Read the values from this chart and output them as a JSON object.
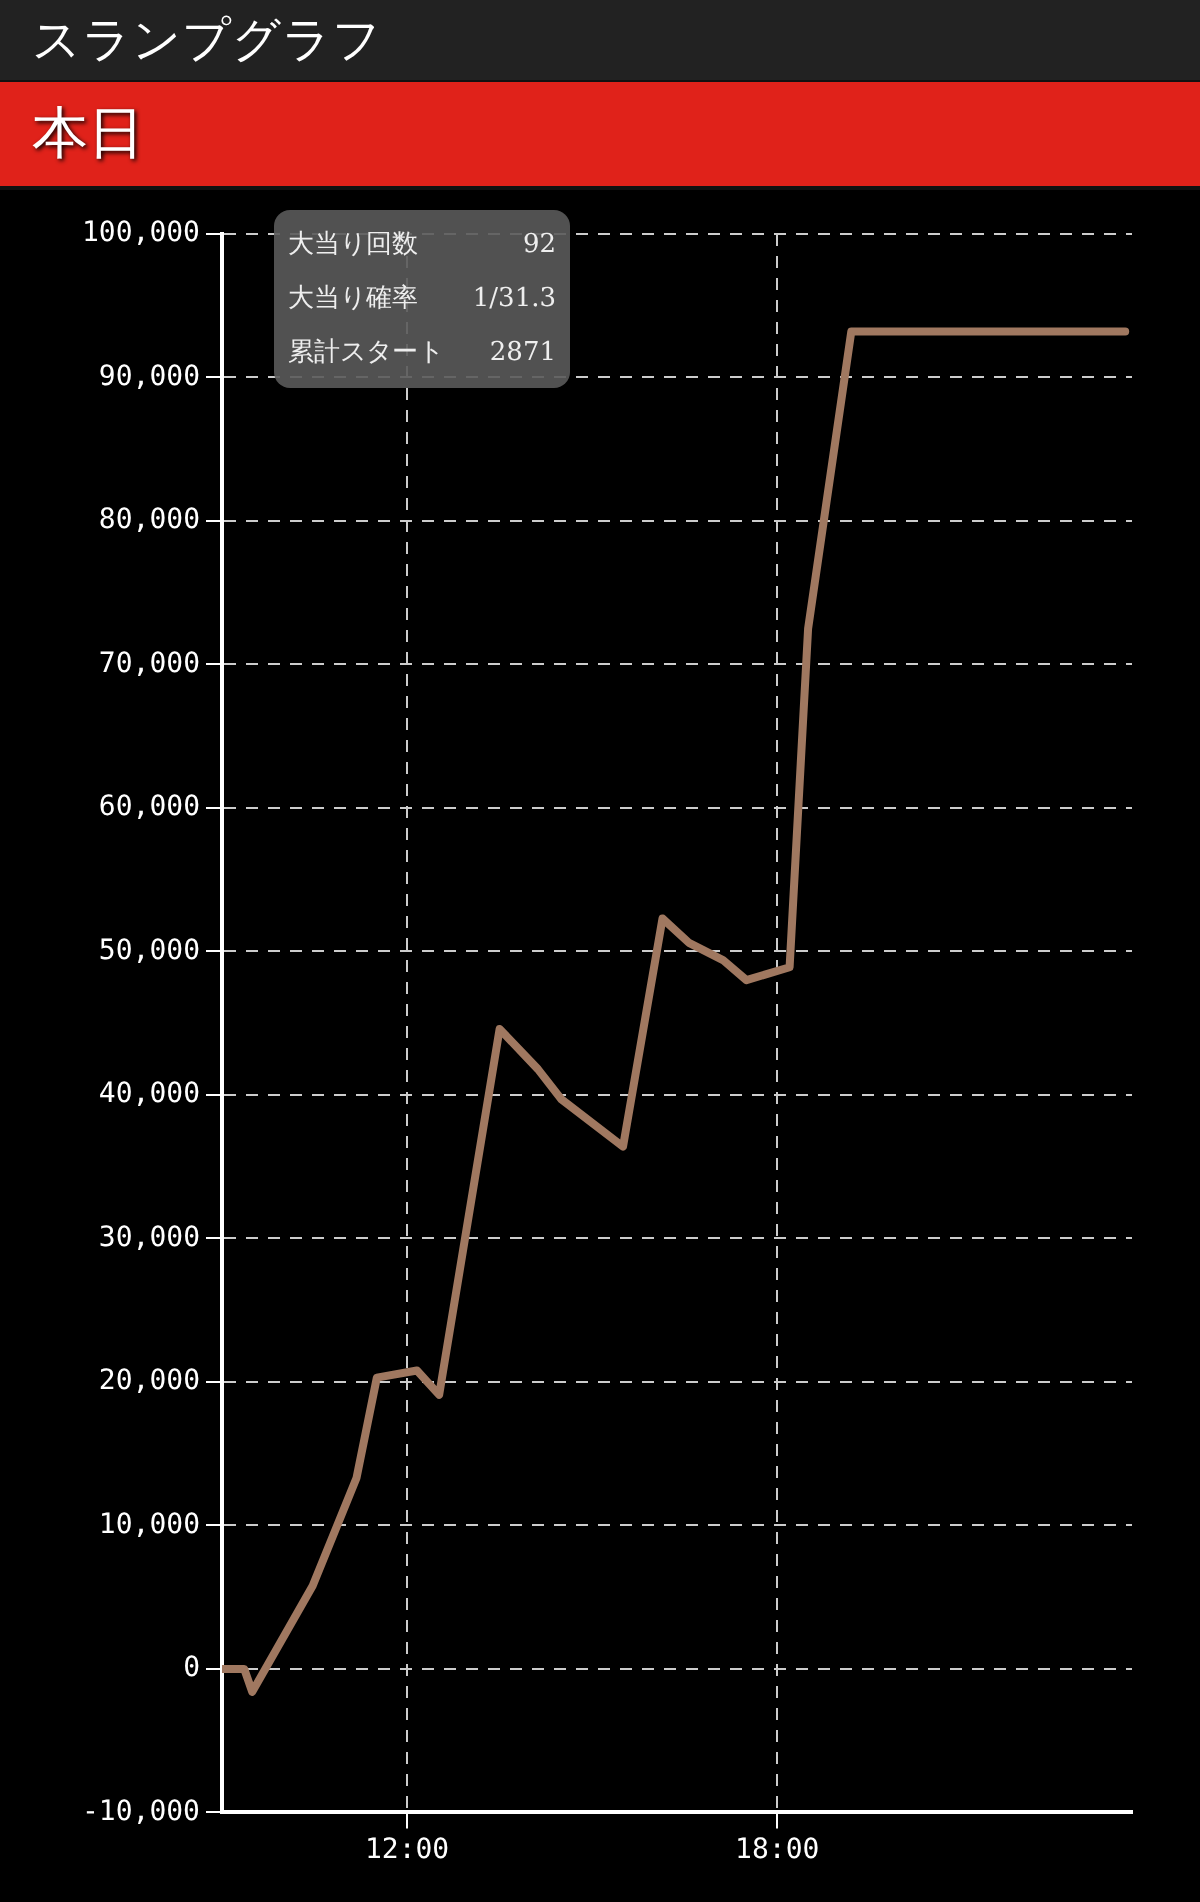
{
  "chart_data": {
    "type": "line",
    "title": "スランプグラフ",
    "subtitle": "本日",
    "annotations": [
      "大当り回数 92",
      "大当り確率 1/31.3",
      "累計スタート 2871"
    ],
    "series": [
      {
        "color": "#a07860",
        "x": [
          9.0,
          9.36,
          9.49,
          10.47,
          11.18,
          11.51,
          12.16,
          12.52,
          13.5,
          14.12,
          14.5,
          15.5,
          16.14,
          16.57,
          17.12,
          17.5,
          18.2,
          18.5,
          19.2,
          23.64
        ],
        "values": [
          0,
          0,
          -1600,
          5800,
          13300,
          20300,
          20800,
          19100,
          44600,
          41800,
          39700,
          36400,
          52300,
          50600,
          49400,
          48000,
          48900,
          72500,
          93200,
          93200
        ]
      }
    ],
    "xlim": [
      9,
      23.75
    ],
    "xticks": [
      {
        "value": 12,
        "label": "12:00"
      },
      {
        "value": 18,
        "label": "18:00"
      }
    ],
    "ylim": [
      -10000,
      100000
    ],
    "yticks": [
      {
        "value": -10000,
        "label": "-10,000"
      },
      0,
      {
        "value": 10000,
        "label": "10,000"
      },
      {
        "value": 20000,
        "label": "20,000"
      },
      {
        "value": 30000,
        "label": "30,000"
      },
      {
        "value": 40000,
        "label": "40,000"
      },
      {
        "value": 50000,
        "label": "50,000"
      },
      {
        "value": 60000,
        "label": "60,000"
      },
      {
        "value": 70000,
        "label": "70,000"
      },
      {
        "value": 80000,
        "label": "80,000"
      },
      {
        "value": 90000,
        "label": "90,000"
      },
      {
        "value": 100000,
        "label": "100,000"
      }
    ],
    "grid": true,
    "legend": false,
    "marker": "none",
    "line_style": "solid"
  }
}
